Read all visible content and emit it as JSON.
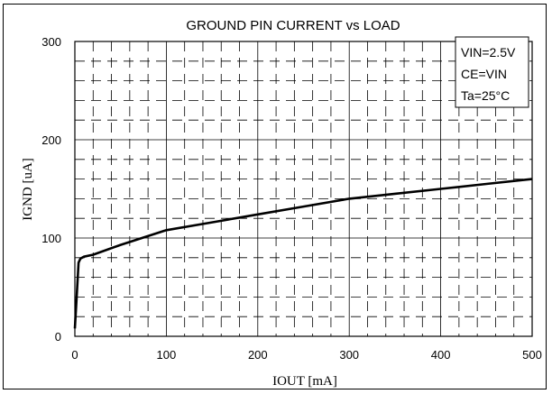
{
  "chart_data": {
    "type": "line",
    "title": "GROUND PIN CURRENT vs LOAD",
    "xlabel": "IOUT [mA]",
    "ylabel": "IGND [uA]",
    "xlim": [
      0,
      500
    ],
    "ylim": [
      0,
      300
    ],
    "x_ticks": [
      "0",
      "100",
      "200",
      "300",
      "400",
      "500"
    ],
    "y_ticks": [
      "0",
      "100",
      "200",
      "300"
    ],
    "grid": true,
    "legend": null,
    "annotations": [
      "VIN=2.5V",
      "CE=VIN",
      "Ta=25°C"
    ],
    "series": [
      {
        "x": [
          0,
          2,
          4,
          6,
          10,
          20,
          50,
          100,
          150,
          200,
          250,
          300,
          350,
          400,
          450,
          500
        ],
        "y": [
          8,
          40,
          75,
          79,
          81,
          83,
          93,
          108,
          116,
          124,
          132,
          140,
          145,
          150,
          155,
          160
        ]
      }
    ]
  }
}
